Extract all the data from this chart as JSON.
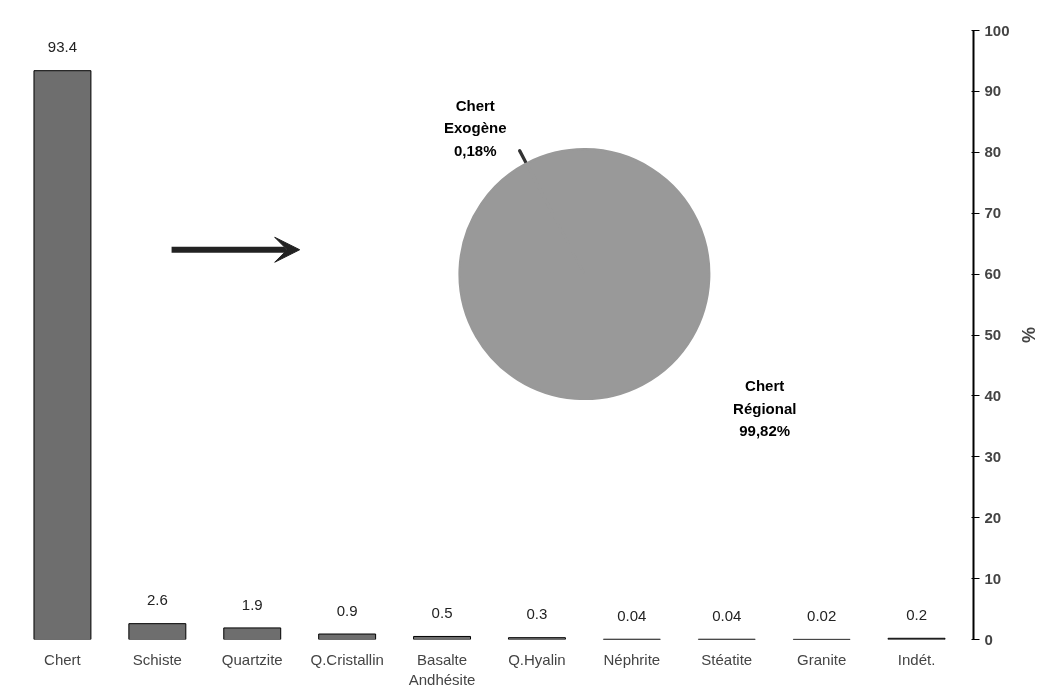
{
  "chart_data": [
    {
      "type": "bar",
      "ylabel": "%",
      "categories": [
        "Chert",
        "Schiste",
        "Quartzite",
        "Q.Cristallin",
        "Basalte\nAndhésite",
        "Q.Hyalin",
        "Néphrite",
        "Stéatite",
        "Granite",
        "Indét."
      ],
      "values": [
        93.4,
        2.6,
        1.9,
        0.9,
        0.5,
        0.3,
        0.04,
        0.04,
        0.02,
        0.2
      ],
      "color": "#6e6e6e",
      "ylim": [
        0,
        100
      ],
      "yticks": [
        0,
        10,
        20,
        30,
        40,
        50,
        60,
        70,
        80,
        90,
        100
      ],
      "data_labels": true,
      "grid": false
    },
    {
      "type": "pie",
      "categories": [
        "Chert Exogène",
        "Chert Régional"
      ],
      "values": [
        0.18,
        99.82
      ],
      "colors": [
        "#333333",
        "#999999"
      ],
      "value_labels": [
        "0,18%",
        "99,82%"
      ]
    }
  ]
}
